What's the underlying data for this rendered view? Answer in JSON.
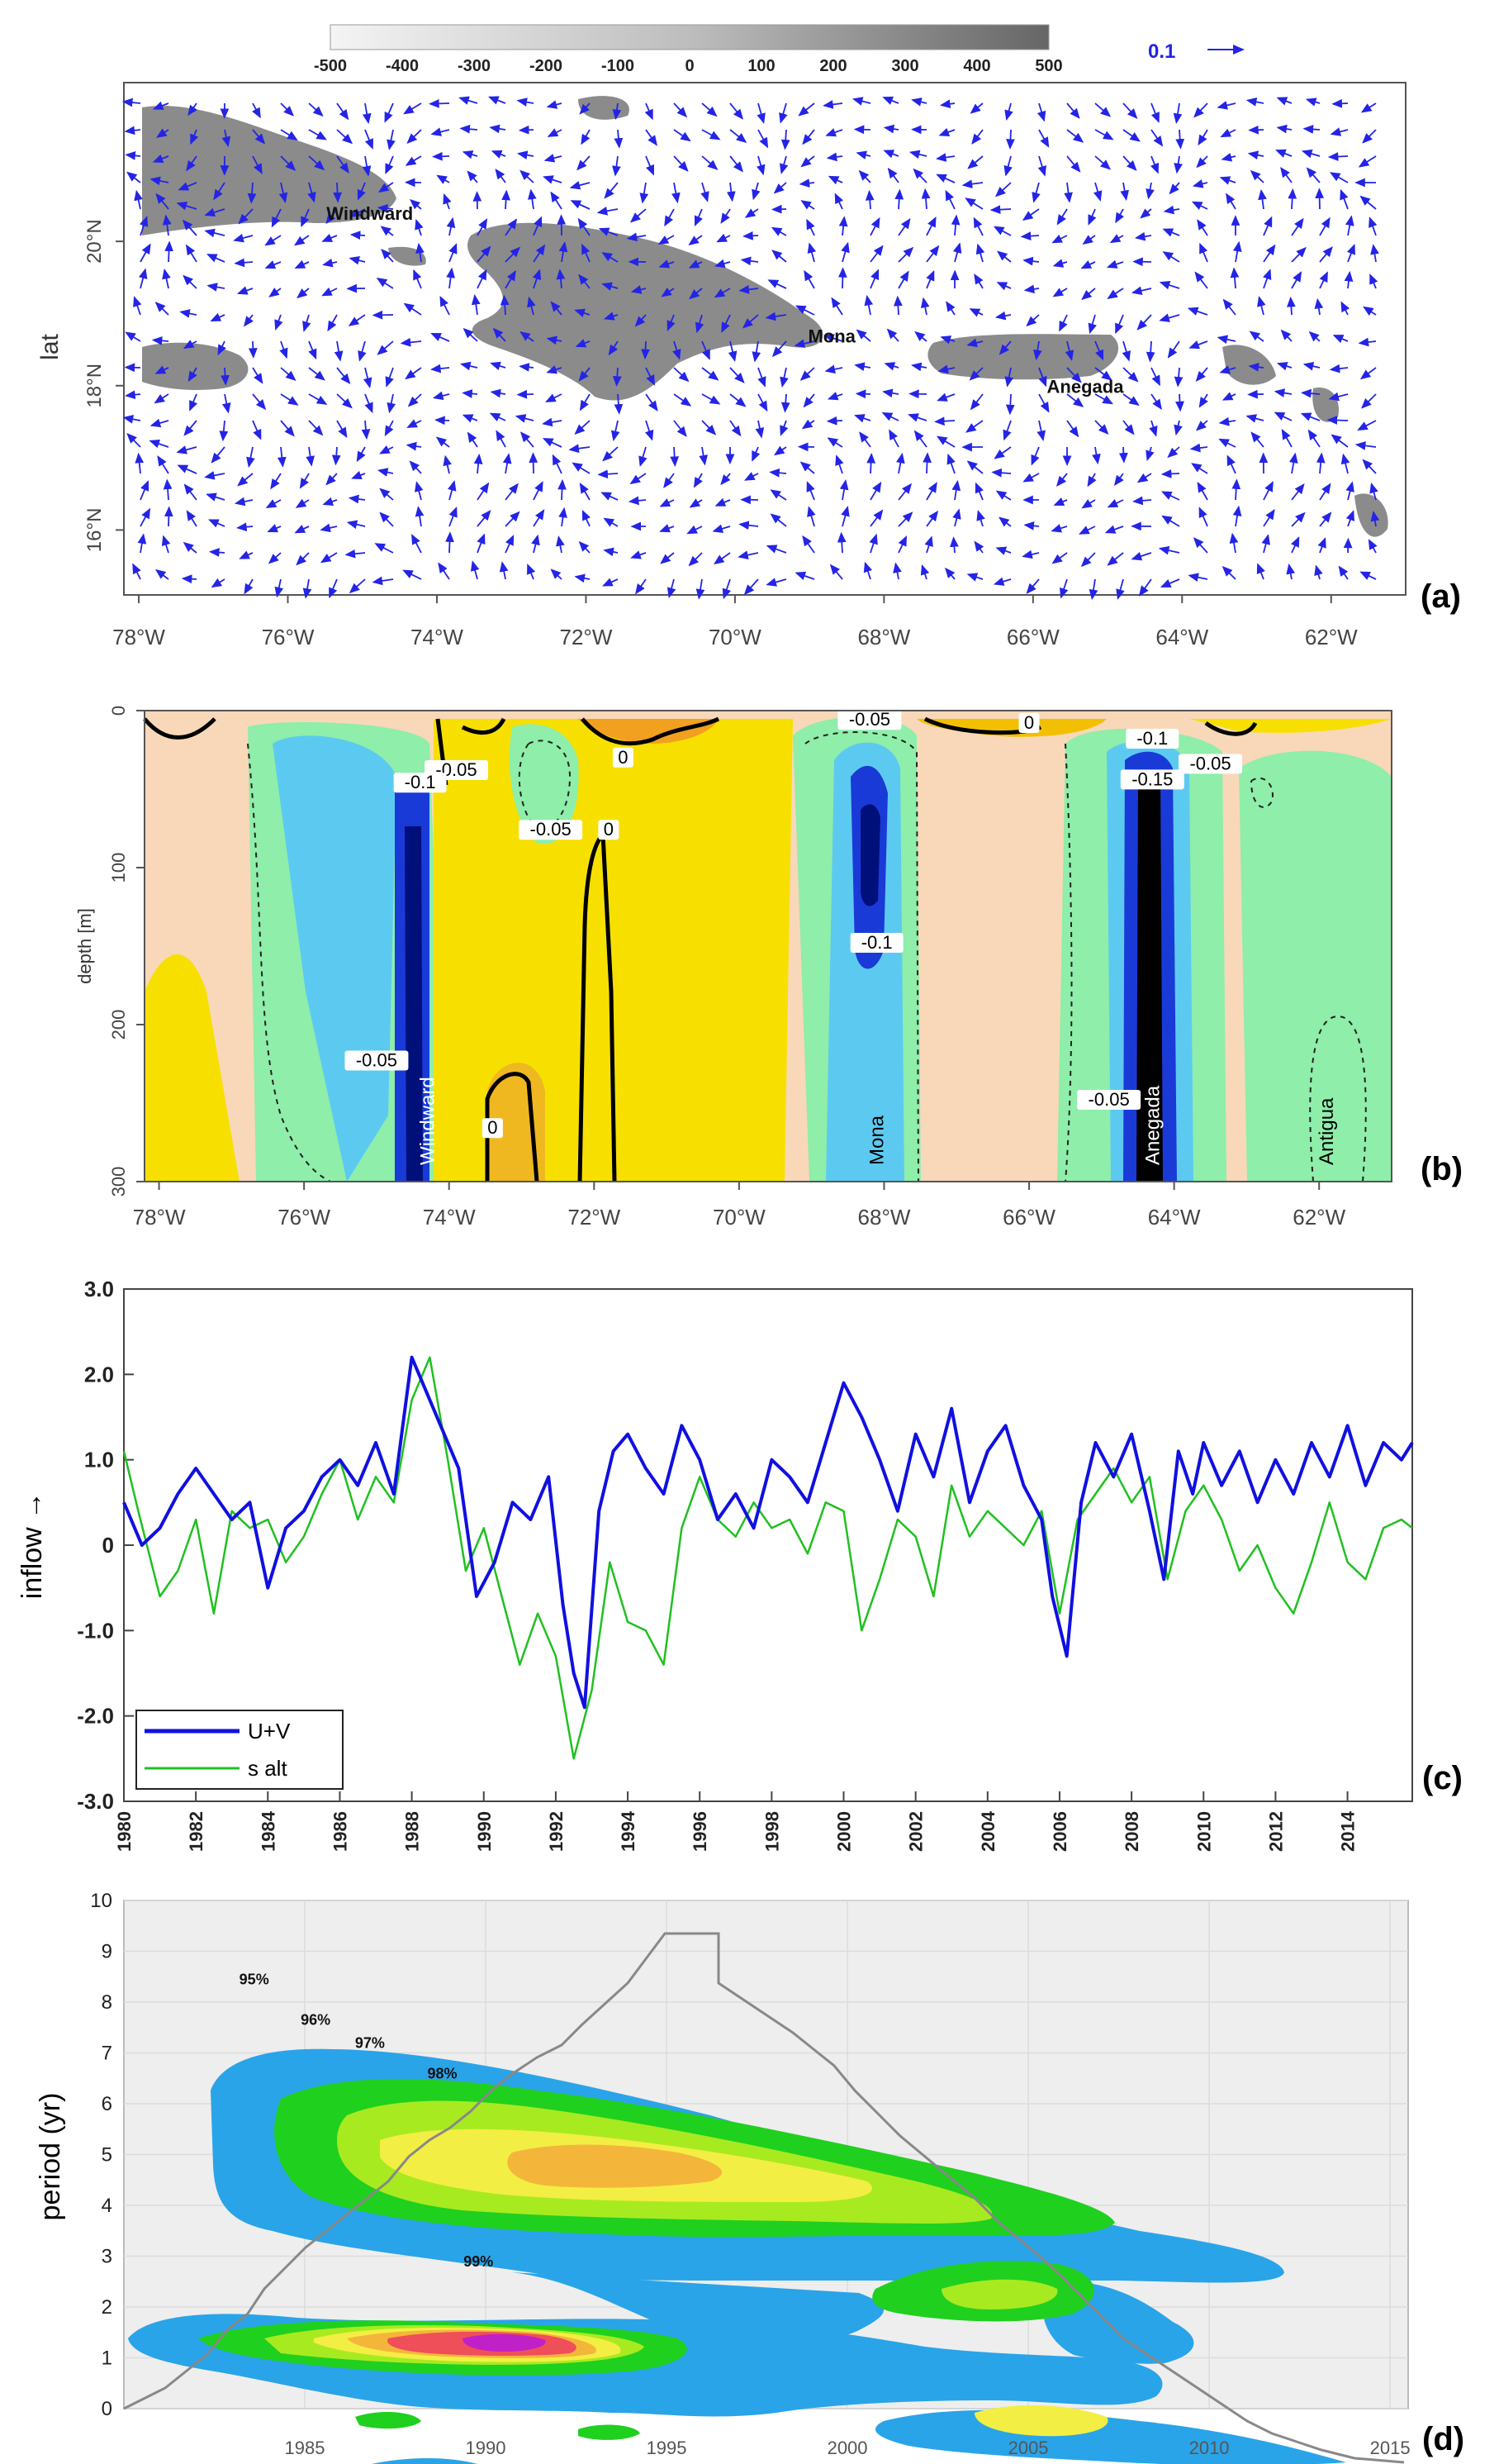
{
  "figure": {
    "panels": [
      "(a)",
      "(b)",
      "(c)",
      "(d)"
    ]
  },
  "chart_data": [
    {
      "id": "a",
      "type": "vector-map",
      "panel_label": "(a)",
      "colorbar": {
        "ticks": [
          "-500",
          "-400",
          "-300",
          "-200",
          "-100",
          "0",
          "100",
          "200",
          "300",
          "400",
          "500"
        ],
        "range": [
          -500,
          500
        ]
      },
      "vector_scale": {
        "label": "0.1"
      },
      "xlabel": "",
      "ylabel": "lat",
      "xlim": [
        -78.2,
        -61.0
      ],
      "ylim": [
        15.1,
        22.2
      ],
      "x_ticks": [
        {
          "v": -78,
          "label": "78°W"
        },
        {
          "v": -76,
          "label": "76°W"
        },
        {
          "v": -74,
          "label": "74°W"
        },
        {
          "v": -72,
          "label": "72°W"
        },
        {
          "v": -70,
          "label": "70°W"
        },
        {
          "v": -68,
          "label": "68°W"
        },
        {
          "v": -66,
          "label": "66°W"
        },
        {
          "v": -64,
          "label": "64°W"
        },
        {
          "v": -62,
          "label": "62°W"
        }
      ],
      "y_ticks": [
        {
          "v": 16,
          "label": "16°N"
        },
        {
          "v": 18,
          "label": "18°N"
        },
        {
          "v": 20,
          "label": "20°N"
        }
      ],
      "annotations": [
        {
          "text": "Windward",
          "lon": -74.9,
          "lat": 20.3
        },
        {
          "text": "Mona",
          "lon": -68.7,
          "lat": 18.6
        },
        {
          "text": "Anegada",
          "lon": -65.3,
          "lat": 17.9
        }
      ]
    },
    {
      "id": "b",
      "type": "heatmap",
      "panel_label": "(b)",
      "ylabel": "depth [m]",
      "xlim": [
        -78.2,
        -61.0
      ],
      "ylim": [
        0,
        300
      ],
      "x_ticks": [
        {
          "v": -78,
          "label": "78°W"
        },
        {
          "v": -76,
          "label": "76°W"
        },
        {
          "v": -74,
          "label": "74°W"
        },
        {
          "v": -72,
          "label": "72°W"
        },
        {
          "v": -70,
          "label": "70°W"
        },
        {
          "v": -68,
          "label": "68°W"
        },
        {
          "v": -66,
          "label": "66°W"
        },
        {
          "v": -64,
          "label": "64°W"
        },
        {
          "v": -62,
          "label": "62°W"
        }
      ],
      "y_ticks": [
        {
          "v": 0,
          "label": "0"
        },
        {
          "v": 100,
          "label": "100"
        },
        {
          "v": 200,
          "label": "200"
        },
        {
          "v": 300,
          "label": "300"
        }
      ],
      "section_labels": [
        {
          "text": "Windward",
          "lon": -74.3
        },
        {
          "text": "Mona",
          "lon": -68.1
        },
        {
          "text": "Anegada",
          "lon": -64.3
        },
        {
          "text": "Antigua",
          "lon": -61.9
        }
      ],
      "contour_labels": [
        {
          "text": "-0.05",
          "lon": -73.9,
          "depth": 40
        },
        {
          "text": "-0.1",
          "lon": -74.4,
          "depth": 48
        },
        {
          "text": "-0.05",
          "lon": -72.6,
          "depth": 78
        },
        {
          "text": "0",
          "lon": -71.8,
          "depth": 78
        },
        {
          "text": "0",
          "lon": -71.6,
          "depth": 32
        },
        {
          "text": "-0.05",
          "lon": -68.2,
          "depth": 8
        },
        {
          "text": "0",
          "lon": -66.0,
          "depth": 10
        },
        {
          "text": "-0.1",
          "lon": -68.1,
          "depth": 150
        },
        {
          "text": "-0.05",
          "lon": -75.0,
          "depth": 225
        },
        {
          "text": "0",
          "lon": -73.4,
          "depth": 268
        },
        {
          "text": "-0.05",
          "lon": -64.9,
          "depth": 250
        },
        {
          "text": "-0.1",
          "lon": -64.3,
          "depth": 20
        },
        {
          "text": "-0.15",
          "lon": -64.3,
          "depth": 46
        },
        {
          "text": "-0.05",
          "lon": -63.5,
          "depth": 36
        }
      ]
    },
    {
      "id": "c",
      "type": "line",
      "panel_label": "(c)",
      "ylabel": "inflow →",
      "xlim": [
        1980,
        2015.8
      ],
      "ylim": [
        -3.0,
        3.0
      ],
      "y_ticks": [
        "-3.0",
        "-2.0",
        "-1.0",
        "0",
        "1.0",
        "2.0",
        "3.0"
      ],
      "x_ticks": [
        "1980",
        "1982",
        "1984",
        "1986",
        "1988",
        "1990",
        "1992",
        "1994",
        "1996",
        "1998",
        "2000",
        "2002",
        "2004",
        "2006",
        "2008",
        "2010",
        "2012",
        "2014"
      ],
      "legend": [
        "U+V",
        "s alt"
      ],
      "series": [
        {
          "name": "U+V",
          "color": "#1010e0",
          "x": [
            1980.0,
            1980.5,
            1981.0,
            1981.5,
            1982.0,
            1982.5,
            1983.0,
            1983.5,
            1984.0,
            1984.5,
            1985.0,
            1985.5,
            1986.0,
            1986.5,
            1987.0,
            1987.5,
            1988.0,
            1988.3,
            1988.8,
            1989.3,
            1989.8,
            1990.3,
            1990.8,
            1991.3,
            1991.8,
            1992.2,
            1992.5,
            1992.8,
            1993.2,
            1993.6,
            1994.0,
            1994.5,
            1995.0,
            1995.5,
            1996.0,
            1996.5,
            1997.0,
            1997.5,
            1998.0,
            1998.5,
            1999.0,
            1999.5,
            2000.0,
            2000.5,
            2001.0,
            2001.5,
            2002.0,
            2002.5,
            2003.0,
            2003.5,
            2004.0,
            2004.5,
            2005.0,
            2005.5,
            2005.8,
            2006.2,
            2006.6,
            2007.0,
            2007.5,
            2008.0,
            2008.5,
            2008.9,
            2009.3,
            2009.7,
            2010.0,
            2010.5,
            2011.0,
            2011.5,
            2012.0,
            2012.5,
            2013.0,
            2013.5,
            2014.0,
            2014.5,
            2015.0,
            2015.5,
            2015.8
          ],
          "y": [
            0.5,
            0.0,
            0.2,
            0.6,
            0.9,
            0.6,
            0.3,
            0.5,
            -0.5,
            0.2,
            0.4,
            0.8,
            1.0,
            0.7,
            1.2,
            0.6,
            2.2,
            1.9,
            1.4,
            0.9,
            -0.6,
            -0.2,
            0.5,
            0.3,
            0.8,
            -0.7,
            -1.5,
            -1.9,
            0.4,
            1.1,
            1.3,
            0.9,
            0.6,
            1.4,
            1.0,
            0.3,
            0.6,
            0.2,
            1.0,
            0.8,
            0.5,
            1.2,
            1.9,
            1.5,
            1.0,
            0.4,
            1.3,
            0.8,
            1.6,
            0.5,
            1.1,
            1.4,
            0.7,
            0.3,
            -0.6,
            -1.3,
            0.5,
            1.2,
            0.8,
            1.3,
            0.4,
            -0.4,
            1.1,
            0.6,
            1.2,
            0.7,
            1.1,
            0.5,
            1.0,
            0.6,
            1.2,
            0.8,
            1.4,
            0.7,
            1.2,
            1.0,
            1.2
          ]
        },
        {
          "name": "s alt",
          "color": "#20c020",
          "x": [
            1980.0,
            1980.4,
            1981.0,
            1981.5,
            1982.0,
            1982.5,
            1983.0,
            1983.5,
            1984.0,
            1984.5,
            1985.0,
            1985.5,
            1986.0,
            1986.5,
            1987.0,
            1987.5,
            1988.0,
            1988.5,
            1989.0,
            1989.5,
            1990.0,
            1990.5,
            1991.0,
            1991.5,
            1992.0,
            1992.5,
            1993.0,
            1993.5,
            1994.0,
            1994.5,
            1995.0,
            1995.5,
            1996.0,
            1996.5,
            1997.0,
            1997.5,
            1998.0,
            1998.5,
            1999.0,
            1999.5,
            2000.0,
            2000.5,
            2001.0,
            2001.5,
            2002.0,
            2002.5,
            2003.0,
            2003.5,
            2004.0,
            2004.5,
            2005.0,
            2005.5,
            2006.0,
            2006.5,
            2007.0,
            2007.5,
            2008.0,
            2008.5,
            2009.0,
            2009.5,
            2010.0,
            2010.5,
            2011.0,
            2011.5,
            2012.0,
            2012.5,
            2013.0,
            2013.5,
            2014.0,
            2014.5,
            2015.0,
            2015.5,
            2015.8
          ],
          "y": [
            1.1,
            0.4,
            -0.6,
            -0.3,
            0.3,
            -0.8,
            0.4,
            0.2,
            0.3,
            -0.2,
            0.1,
            0.6,
            1.0,
            0.3,
            0.8,
            0.5,
            1.7,
            2.2,
            1.0,
            -0.3,
            0.2,
            -0.6,
            -1.4,
            -0.8,
            -1.3,
            -2.5,
            -1.7,
            -0.2,
            -0.9,
            -1.0,
            -1.4,
            0.2,
            0.8,
            0.3,
            0.1,
            0.5,
            0.2,
            0.3,
            -0.1,
            0.5,
            0.4,
            -1.0,
            -0.4,
            0.3,
            0.1,
            -0.6,
            0.7,
            0.1,
            0.4,
            0.2,
            0.0,
            0.4,
            -0.8,
            0.3,
            0.6,
            0.9,
            0.5,
            0.8,
            -0.4,
            0.4,
            0.7,
            0.3,
            -0.3,
            0.0,
            -0.5,
            -0.8,
            -0.2,
            0.5,
            -0.2,
            -0.4,
            0.2,
            0.3,
            0.2
          ]
        }
      ]
    },
    {
      "id": "d",
      "type": "contour",
      "panel_label": "(d)",
      "ylabel": "period (yr)",
      "xlim": [
        1980,
        2015.5
      ],
      "ylim": [
        0,
        10
      ],
      "y_ticks": [
        "0",
        "1",
        "2",
        "3",
        "4",
        "5",
        "6",
        "7",
        "8",
        "9",
        "10"
      ],
      "x_ticks": [
        "1985",
        "1990",
        "1995",
        "2000",
        "2005",
        "2010",
        "2015"
      ],
      "levels": [
        {
          "text": "95%",
          "x": 1983.6,
          "y": 8.35
        },
        {
          "text": "96%",
          "x": 1985.3,
          "y": 7.55
        },
        {
          "text": "97%",
          "x": 1986.8,
          "y": 7.1
        },
        {
          "text": "98%",
          "x": 1988.8,
          "y": 6.5
        },
        {
          "text": "99%",
          "x": 1989.8,
          "y": 2.8
        }
      ],
      "colors": {
        "level1": "#2aa4e8",
        "level2": "#1fd01f",
        "level3": "#a8ea20",
        "level4": "#f3ee44",
        "level5": "#f4b63a",
        "level6": "#ef4f58",
        "level7": "#c020c8"
      }
    }
  ]
}
